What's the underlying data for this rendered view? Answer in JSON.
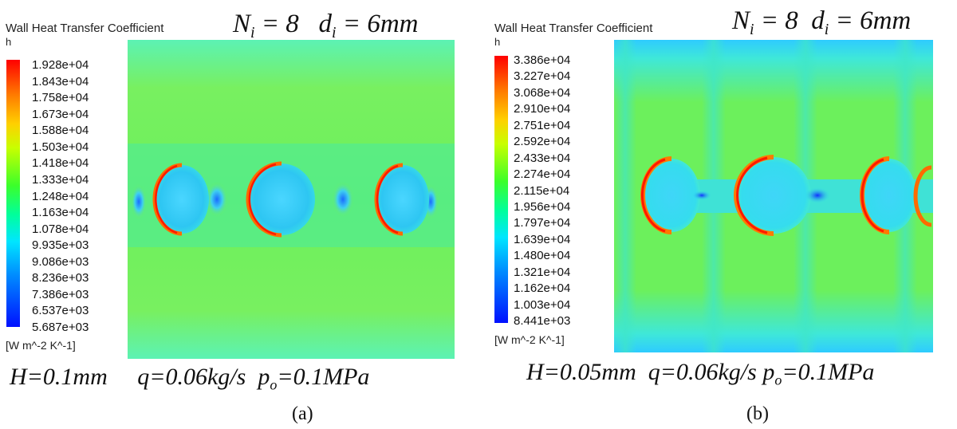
{
  "panels": [
    {
      "id": "a",
      "colorbar_title": "Wall Heat Transfer Coefficient",
      "variable": "h",
      "ticks": [
        "1.928e+04",
        "1.843e+04",
        "1.758e+04",
        "1.673e+04",
        "1.588e+04",
        "1.503e+04",
        "1.418e+04",
        "1.333e+04",
        "1.248e+04",
        "1.163e+04",
        "1.078e+04",
        "9.935e+03",
        "9.086e+03",
        "8.236e+03",
        "7.386e+03",
        "6.537e+03",
        "5.687e+03"
      ],
      "units": "[W m^-2 K^-1]",
      "header": {
        "N_base": "N",
        "N_sub": "i",
        "N_val": " = 8",
        "d_base": "d",
        "d_sub": "i",
        "d_val": " = 6mm"
      },
      "footer": {
        "H": "H=0.1mm",
        "q": "q=0.06kg/s",
        "p_base": "p",
        "p_sub": "o",
        "p_val": "=0.1MPa"
      },
      "caption": "(a)"
    },
    {
      "id": "b",
      "colorbar_title": "Wall Heat Transfer Coefficient",
      "variable": "h",
      "ticks": [
        "3.386e+04",
        "3.227e+04",
        "3.068e+04",
        "2.910e+04",
        "2.751e+04",
        "2.592e+04",
        "2.433e+04",
        "2.274e+04",
        "2.115e+04",
        "1.956e+04",
        "1.797e+04",
        "1.639e+04",
        "1.480e+04",
        "1.321e+04",
        "1.162e+04",
        "1.003e+04",
        "8.441e+03"
      ],
      "units": "[W m^-2 K^-1]",
      "header": {
        "N_base": "N",
        "N_sub": "i",
        "N_val": " = 8",
        "d_base": "d",
        "d_sub": "i",
        "d_val": " = 6mm"
      },
      "footer": {
        "H": "H=0.05mm",
        "q": "q=0.06kg/s",
        "p_base": "p",
        "p_sub": "o",
        "p_val": "=0.1MPa"
      },
      "caption": "(b)"
    }
  ],
  "colormap": [
    "#ff0000",
    "#ff7a00",
    "#ffd000",
    "#c8ff00",
    "#3cff2a",
    "#00ff9c",
    "#00e6ff",
    "#0090ff",
    "#0010ff"
  ]
}
